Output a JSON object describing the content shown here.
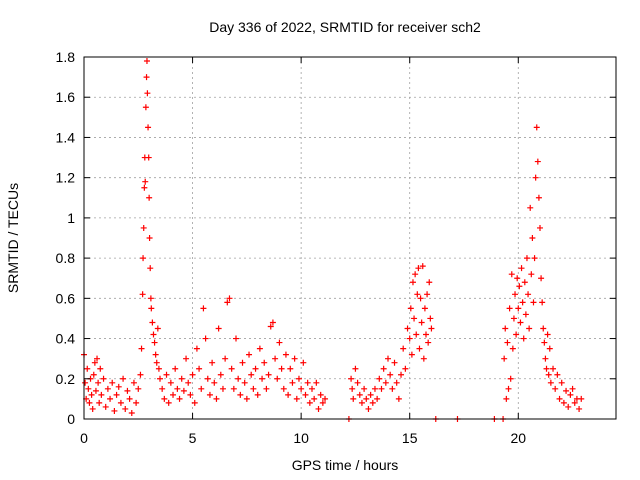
{
  "chart_data": {
    "type": "scatter",
    "title": "Day 336 of 2022, SRMTID for receiver sch2",
    "xlabel": "GPS time / hours",
    "ylabel": "SRMTID / TECUs",
    "xlim": [
      0,
      24.5
    ],
    "ylim": [
      0,
      1.8
    ],
    "x_ticks": [
      0,
      5,
      10,
      15,
      20
    ],
    "x_tick_labels": [
      "0",
      "5",
      "10",
      "15",
      "20"
    ],
    "y_ticks": [
      0,
      0.2,
      0.4,
      0.6,
      0.8,
      1,
      1.2,
      1.4,
      1.6,
      1.8
    ],
    "y_tick_labels": [
      "0",
      "0.2",
      "0.4",
      "0.6",
      "0.8",
      "1",
      "1.2",
      "1.4",
      "1.6",
      "1.8"
    ],
    "grid": true,
    "marker": "+",
    "series": [
      {
        "name": "SRMTID",
        "color": "#ff0000",
        "points": [
          [
            0.0,
            0.32
          ],
          [
            0.05,
            0.18
          ],
          [
            0.1,
            0.1
          ],
          [
            0.15,
            0.25
          ],
          [
            0.2,
            0.15
          ],
          [
            0.25,
            0.08
          ],
          [
            0.3,
            0.2
          ],
          [
            0.35,
            0.12
          ],
          [
            0.4,
            0.05
          ],
          [
            0.45,
            0.22
          ],
          [
            0.5,
            0.28
          ],
          [
            0.55,
            0.14
          ],
          [
            0.6,
            0.3
          ],
          [
            0.65,
            0.18
          ],
          [
            0.7,
            0.08
          ],
          [
            0.75,
            0.25
          ],
          [
            0.8,
            0.12
          ],
          [
            0.9,
            0.2
          ],
          [
            1.0,
            0.06
          ],
          [
            1.1,
            0.15
          ],
          [
            1.2,
            0.1
          ],
          [
            1.3,
            0.18
          ],
          [
            1.4,
            0.04
          ],
          [
            1.5,
            0.12
          ],
          [
            1.6,
            0.16
          ],
          [
            1.7,
            0.08
          ],
          [
            1.8,
            0.2
          ],
          [
            1.9,
            0.05
          ],
          [
            2.0,
            0.14
          ],
          [
            2.1,
            0.1
          ],
          [
            2.2,
            0.03
          ],
          [
            2.3,
            0.18
          ],
          [
            2.4,
            0.08
          ],
          [
            2.5,
            0.15
          ],
          [
            2.6,
            0.22
          ],
          [
            2.65,
            0.35
          ],
          [
            2.7,
            0.62
          ],
          [
            2.72,
            0.8
          ],
          [
            2.75,
            0.95
          ],
          [
            2.78,
            1.15
          ],
          [
            2.8,
            1.3
          ],
          [
            2.82,
            1.18
          ],
          [
            2.85,
            1.55
          ],
          [
            2.88,
            1.7
          ],
          [
            2.9,
            1.78
          ],
          [
            2.92,
            1.62
          ],
          [
            2.95,
            1.45
          ],
          [
            2.98,
            1.3
          ],
          [
            3.0,
            1.1
          ],
          [
            3.02,
            0.9
          ],
          [
            3.05,
            0.75
          ],
          [
            3.08,
            0.6
          ],
          [
            3.1,
            0.55
          ],
          [
            3.15,
            0.48
          ],
          [
            3.2,
            0.42
          ],
          [
            3.25,
            0.38
          ],
          [
            3.3,
            0.32
          ],
          [
            3.35,
            0.28
          ],
          [
            3.4,
            0.45
          ],
          [
            3.45,
            0.25
          ],
          [
            3.5,
            0.2
          ],
          [
            3.6,
            0.15
          ],
          [
            3.7,
            0.1
          ],
          [
            3.8,
            0.22
          ],
          [
            3.9,
            0.08
          ],
          [
            4.0,
            0.18
          ],
          [
            4.1,
            0.12
          ],
          [
            4.2,
            0.25
          ],
          [
            4.3,
            0.15
          ],
          [
            4.4,
            0.1
          ],
          [
            4.5,
            0.2
          ],
          [
            4.6,
            0.14
          ],
          [
            4.7,
            0.3
          ],
          [
            4.8,
            0.18
          ],
          [
            4.9,
            0.12
          ],
          [
            5.0,
            0.22
          ],
          [
            5.1,
            0.08
          ],
          [
            5.2,
            0.35
          ],
          [
            5.3,
            0.25
          ],
          [
            5.4,
            0.15
          ],
          [
            5.5,
            0.55
          ],
          [
            5.6,
            0.4
          ],
          [
            5.7,
            0.2
          ],
          [
            5.8,
            0.12
          ],
          [
            5.9,
            0.28
          ],
          [
            6.0,
            0.18
          ],
          [
            6.1,
            0.1
          ],
          [
            6.2,
            0.45
          ],
          [
            6.3,
            0.22
          ],
          [
            6.4,
            0.15
          ],
          [
            6.5,
            0.3
          ],
          [
            6.6,
            0.58
          ],
          [
            6.7,
            0.6
          ],
          [
            6.8,
            0.25
          ],
          [
            6.9,
            0.15
          ],
          [
            7.0,
            0.4
          ],
          [
            7.1,
            0.2
          ],
          [
            7.2,
            0.12
          ],
          [
            7.3,
            0.28
          ],
          [
            7.4,
            0.18
          ],
          [
            7.5,
            0.1
          ],
          [
            7.6,
            0.32
          ],
          [
            7.7,
            0.22
          ],
          [
            7.8,
            0.15
          ],
          [
            7.9,
            0.25
          ],
          [
            8.0,
            0.12
          ],
          [
            8.1,
            0.35
          ],
          [
            8.2,
            0.2
          ],
          [
            8.3,
            0.28
          ],
          [
            8.4,
            0.15
          ],
          [
            8.5,
            0.22
          ],
          [
            8.6,
            0.46
          ],
          [
            8.7,
            0.48
          ],
          [
            8.8,
            0.3
          ],
          [
            8.9,
            0.2
          ],
          [
            9.0,
            0.38
          ],
          [
            9.1,
            0.25
          ],
          [
            9.2,
            0.15
          ],
          [
            9.3,
            0.32
          ],
          [
            9.4,
            0.12
          ],
          [
            9.5,
            0.25
          ],
          [
            9.6,
            0.18
          ],
          [
            9.7,
            0.3
          ],
          [
            9.8,
            0.1
          ],
          [
            9.9,
            0.2
          ],
          [
            10.0,
            0.15
          ],
          [
            10.1,
            0.28
          ],
          [
            10.2,
            0.12
          ],
          [
            10.3,
            0.18
          ],
          [
            10.4,
            0.08
          ],
          [
            10.5,
            0.15
          ],
          [
            10.6,
            0.1
          ],
          [
            10.7,
            0.18
          ],
          [
            10.8,
            0.05
          ],
          [
            10.9,
            0.12
          ],
          [
            11.0,
            0.08
          ],
          [
            11.1,
            0.1
          ],
          [
            12.2,
            0.0
          ],
          [
            12.3,
            0.2
          ],
          [
            12.35,
            0.15
          ],
          [
            12.4,
            0.1
          ],
          [
            12.5,
            0.25
          ],
          [
            12.6,
            0.18
          ],
          [
            12.7,
            0.12
          ],
          [
            12.8,
            0.08
          ],
          [
            12.9,
            0.15
          ],
          [
            13.0,
            0.1
          ],
          [
            13.1,
            0.05
          ],
          [
            13.2,
            0.12
          ],
          [
            13.3,
            0.08
          ],
          [
            13.4,
            0.15
          ],
          [
            13.5,
            0.1
          ],
          [
            13.6,
            0.2
          ],
          [
            13.7,
            0.15
          ],
          [
            13.8,
            0.25
          ],
          [
            13.9,
            0.18
          ],
          [
            14.0,
            0.3
          ],
          [
            14.1,
            0.22
          ],
          [
            14.2,
            0.15
          ],
          [
            14.3,
            0.28
          ],
          [
            14.4,
            0.18
          ],
          [
            14.5,
            0.1
          ],
          [
            14.6,
            0.22
          ],
          [
            14.7,
            0.35
          ],
          [
            14.8,
            0.25
          ],
          [
            14.9,
            0.45
          ],
          [
            15.0,
            0.4
          ],
          [
            15.05,
            0.55
          ],
          [
            15.1,
            0.32
          ],
          [
            15.15,
            0.68
          ],
          [
            15.2,
            0.5
          ],
          [
            15.25,
            0.72
          ],
          [
            15.3,
            0.42
          ],
          [
            15.35,
            0.62
          ],
          [
            15.4,
            0.75
          ],
          [
            15.45,
            0.35
          ],
          [
            15.5,
            0.6
          ],
          [
            15.55,
            0.48
          ],
          [
            15.6,
            0.76
          ],
          [
            15.65,
            0.3
          ],
          [
            15.7,
            0.55
          ],
          [
            15.75,
            0.42
          ],
          [
            15.8,
            0.62
          ],
          [
            15.85,
            0.38
          ],
          [
            15.9,
            0.68
          ],
          [
            15.95,
            0.5
          ],
          [
            16.0,
            0.45
          ],
          [
            16.2,
            0.0
          ],
          [
            17.2,
            0.0
          ],
          [
            18.9,
            0.0
          ],
          [
            19.3,
            0.0
          ],
          [
            19.35,
            0.3
          ],
          [
            19.4,
            0.45
          ],
          [
            19.45,
            0.1
          ],
          [
            19.5,
            0.38
          ],
          [
            19.55,
            0.15
          ],
          [
            19.6,
            0.55
          ],
          [
            19.65,
            0.2
          ],
          [
            19.7,
            0.72
          ],
          [
            19.75,
            0.35
          ],
          [
            19.8,
            0.5
          ],
          [
            19.85,
            0.62
          ],
          [
            19.9,
            0.42
          ],
          [
            19.95,
            0.7
          ],
          [
            20.0,
            0.55
          ],
          [
            20.05,
            0.66
          ],
          [
            20.1,
            0.48
          ],
          [
            20.15,
            0.75
          ],
          [
            20.2,
            0.58
          ],
          [
            20.25,
            0.4
          ],
          [
            20.3,
            0.68
          ],
          [
            20.35,
            0.52
          ],
          [
            20.4,
            0.8
          ],
          [
            20.45,
            0.62
          ],
          [
            20.5,
            0.45
          ],
          [
            20.55,
            1.05
          ],
          [
            20.6,
            0.72
          ],
          [
            20.65,
            0.9
          ],
          [
            20.7,
            0.58
          ],
          [
            20.75,
            0.8
          ],
          [
            20.8,
            1.2
          ],
          [
            20.85,
            1.45
          ],
          [
            20.9,
            1.28
          ],
          [
            20.95,
            1.1
          ],
          [
            21.0,
            0.95
          ],
          [
            21.05,
            0.7
          ],
          [
            21.1,
            0.58
          ],
          [
            21.15,
            0.45
          ],
          [
            21.2,
            0.38
          ],
          [
            21.25,
            0.3
          ],
          [
            21.3,
            0.25
          ],
          [
            21.35,
            0.42
          ],
          [
            21.4,
            0.22
          ],
          [
            21.45,
            0.35
          ],
          [
            21.5,
            0.18
          ],
          [
            21.6,
            0.25
          ],
          [
            21.7,
            0.15
          ],
          [
            21.8,
            0.22
          ],
          [
            21.9,
            0.1
          ],
          [
            22.0,
            0.18
          ],
          [
            22.1,
            0.08
          ],
          [
            22.2,
            0.14
          ],
          [
            22.3,
            0.06
          ],
          [
            22.4,
            0.12
          ],
          [
            22.5,
            0.15
          ],
          [
            22.6,
            0.08
          ],
          [
            22.7,
            0.1
          ],
          [
            22.8,
            0.05
          ],
          [
            22.9,
            0.1
          ]
        ]
      }
    ]
  }
}
